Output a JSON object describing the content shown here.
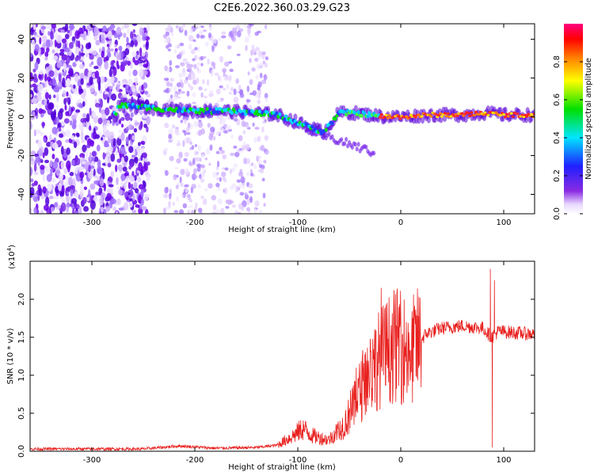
{
  "title": "C2E6.2022.360.03.29.G23",
  "chart_data": [
    {
      "type": "heatmap",
      "title": "C2E6.2022.360.03.29.G23",
      "xlabel": "Height of straight line (km)",
      "ylabel": "Frequency (Hz)",
      "xlim": [
        -360,
        130
      ],
      "ylim": [
        -50,
        48
      ],
      "xticks": [
        -300,
        -200,
        -100,
        0,
        100
      ],
      "xtick_labels": [
        "-300",
        "-200",
        "-100",
        "0",
        "100"
      ],
      "yticks": [
        -40,
        -20,
        0,
        20,
        40
      ],
      "ytick_labels": [
        "-40",
        "-20",
        "0",
        "20",
        "40"
      ],
      "colorbar": {
        "label": "Normalized spectral amplitude",
        "range": [
          0,
          1
        ],
        "ticks": [
          0.0,
          0.2,
          0.4,
          0.6,
          0.8
        ],
        "tick_labels": [
          "0.0",
          "0.2",
          "0.4",
          "0.6",
          "0.8"
        ],
        "colormap": "rainbow (white-purple-blue-cyan-green-yellow-orange-red-magenta)"
      },
      "ridge": [
        {
          "x": -275,
          "y": 6
        },
        {
          "x": -250,
          "y": 5
        },
        {
          "x": -230,
          "y": 4
        },
        {
          "x": -200,
          "y": 3
        },
        {
          "x": -170,
          "y": 3
        },
        {
          "x": -140,
          "y": 2
        },
        {
          "x": -120,
          "y": 1
        },
        {
          "x": -100,
          "y": -3
        },
        {
          "x": -85,
          "y": -6
        },
        {
          "x": -75,
          "y": -8
        },
        {
          "x": -60,
          "y": 2
        },
        {
          "x": -45,
          "y": 2
        },
        {
          "x": -30,
          "y": 1
        },
        {
          "x": -15,
          "y": 0
        },
        {
          "x": 0,
          "y": 0
        },
        {
          "x": 30,
          "y": 1
        },
        {
          "x": 60,
          "y": 1
        },
        {
          "x": 82,
          "y": 2
        },
        {
          "x": 100,
          "y": 1
        },
        {
          "x": 130,
          "y": 1
        }
      ],
      "noise_regions": [
        [
          -360,
          -245
        ],
        [
          -230,
          -130
        ]
      ]
    },
    {
      "type": "line",
      "xlabel": "Height of straight line (km)",
      "ylabel": "SNR (10 * v/v)",
      "exponent_label": "(x10",
      "exponent_value": "4",
      "exponent_suffix": ")",
      "xlim": [
        -360,
        130
      ],
      "ylim": [
        0,
        2.5
      ],
      "xticks": [
        -300,
        -200,
        -100,
        0,
        100
      ],
      "xtick_labels": [
        "-300",
        "-200",
        "-100",
        "0",
        "100"
      ],
      "yticks": [
        0.0,
        0.5,
        1.0,
        1.5,
        2.0
      ],
      "ytick_labels": [
        "0.0",
        "0.5",
        "1.0",
        "1.5",
        "2.0"
      ],
      "color": "#e8201e",
      "envelope": [
        {
          "x": -360,
          "y": 0.03
        },
        {
          "x": -250,
          "y": 0.03
        },
        {
          "x": -215,
          "y": 0.07
        },
        {
          "x": -180,
          "y": 0.04
        },
        {
          "x": -140,
          "y": 0.05
        },
        {
          "x": -120,
          "y": 0.08
        },
        {
          "x": -105,
          "y": 0.2
        },
        {
          "x": -95,
          "y": 0.3
        },
        {
          "x": -85,
          "y": 0.2
        },
        {
          "x": -70,
          "y": 0.15
        },
        {
          "x": -55,
          "y": 0.35
        },
        {
          "x": -45,
          "y": 0.6
        },
        {
          "x": -35,
          "y": 0.95
        },
        {
          "x": -25,
          "y": 1.15
        },
        {
          "x": -15,
          "y": 1.3
        },
        {
          "x": -5,
          "y": 1.4
        },
        {
          "x": 10,
          "y": 1.3
        },
        {
          "x": 25,
          "y": 1.55
        },
        {
          "x": 40,
          "y": 1.62
        },
        {
          "x": 60,
          "y": 1.65
        },
        {
          "x": 80,
          "y": 1.62
        },
        {
          "x": 88,
          "y": 1.5
        },
        {
          "x": 95,
          "y": 1.58
        },
        {
          "x": 110,
          "y": 1.56
        },
        {
          "x": 130,
          "y": 1.54
        }
      ],
      "spikes": [
        {
          "x": -19,
          "y": 2.15
        },
        {
          "x": -2,
          "y": 1.9
        },
        {
          "x": 87,
          "y": 2.4
        },
        {
          "x": 89,
          "y": 0.05
        },
        {
          "x": 91,
          "y": 2.25
        }
      ]
    }
  ]
}
